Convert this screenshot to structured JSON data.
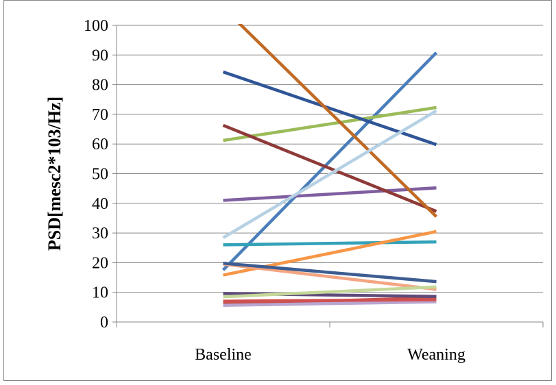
{
  "chart_data": {
    "type": "line",
    "title": "",
    "xlabel": "",
    "ylabel": "PSD[mesc2*103/Hz]",
    "categories": [
      "Baseline",
      "Weaning"
    ],
    "ylim": [
      0,
      100
    ],
    "yticks": [
      0,
      10,
      20,
      30,
      40,
      50,
      60,
      70,
      80,
      90,
      100
    ],
    "grid": true,
    "legend": false,
    "series": [
      {
        "color": "#4a7ebb",
        "values": [
          17.5,
          90.8
        ]
      },
      {
        "color": "#c0504d",
        "values": [
          6.0,
          8.2
        ]
      },
      {
        "color": "#9bbb59",
        "values": [
          61.2,
          72.3
        ]
      },
      {
        "color": "#7f5fa0",
        "values": [
          41.0,
          45.2
        ]
      },
      {
        "color": "#33a2b8",
        "values": [
          26.0,
          27.0
        ]
      },
      {
        "color": "#f79646",
        "values": [
          15.8,
          30.5
        ]
      },
      {
        "color": "#2f5597",
        "values": [
          84.3,
          59.8
        ]
      },
      {
        "color": "#8e3a38",
        "values": [
          66.3,
          37.3
        ]
      },
      {
        "color": "#c06a25",
        "values": [
          106.0,
          35.5
        ]
      },
      {
        "color": "#b7d1e4",
        "values": [
          28.4,
          71.2
        ]
      },
      {
        "color": "#f4a582",
        "values": [
          19.5,
          11.0
        ]
      },
      {
        "color": "#3d5d92",
        "values": [
          19.8,
          13.6
        ]
      },
      {
        "color": "#5e4a7a",
        "values": [
          9.6,
          8.6
        ]
      },
      {
        "color": "#c5d89a",
        "values": [
          8.5,
          11.8
        ]
      },
      {
        "color": "#b9a6d0",
        "values": [
          5.6,
          6.8
        ]
      },
      {
        "color": "#d05050",
        "values": [
          7.0,
          7.5
        ]
      }
    ]
  }
}
